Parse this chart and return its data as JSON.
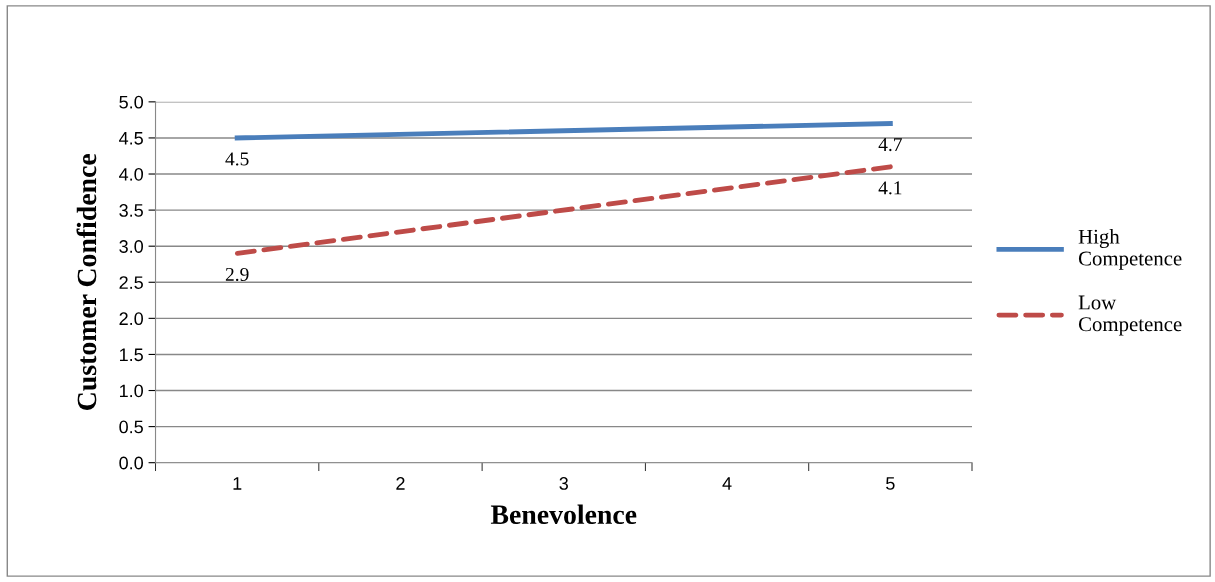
{
  "chart_data": {
    "type": "line",
    "xlabel": "Benevolence",
    "ylabel": "Customer Confidence",
    "categories": [
      "1",
      "2",
      "3",
      "4",
      "5"
    ],
    "series": [
      {
        "name": "High Competence",
        "color": "#4a7ebb",
        "line_style": "solid",
        "values": [
          4.5,
          null,
          null,
          null,
          4.7
        ],
        "value_labels": [
          "4.5",
          null,
          null,
          null,
          "4.7"
        ]
      },
      {
        "name": "Low Competence",
        "color": "#be4b48",
        "line_style": "dashed",
        "values": [
          2.9,
          null,
          null,
          null,
          4.1
        ],
        "value_labels": [
          "2.9",
          null,
          null,
          null,
          "4.1"
        ]
      }
    ],
    "ylim": [
      0,
      5
    ],
    "yticks": [
      "0.0",
      "0.5",
      "1.0",
      "1.5",
      "2.0",
      "2.5",
      "3.0",
      "3.5",
      "4.0",
      "4.5",
      "5.0"
    ],
    "grid": "y",
    "legend": "right",
    "marker": "none"
  }
}
